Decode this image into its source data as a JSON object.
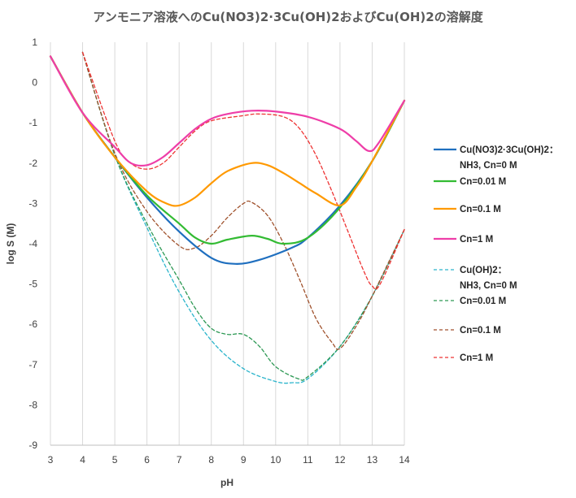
{
  "chart_data": {
    "type": "line",
    "title": "アンモニア溶液へのCu(NO3)2·3Cu(OH)2およびCu(OH)2の溶解度",
    "xlabel": "pH",
    "ylabel": "log S (M)",
    "xlim": [
      3,
      14
    ],
    "ylim": [
      -9,
      1
    ],
    "xticks": [
      3,
      4,
      5,
      6,
      7,
      8,
      9,
      10,
      11,
      12,
      13,
      14
    ],
    "yticks": [
      1,
      0,
      -1,
      -2,
      -3,
      -4,
      -5,
      -6,
      -7,
      -8,
      -9
    ],
    "grid": "vertical",
    "legend_position": "right",
    "series": [
      {
        "name": "Cu(NO3)2·3Cu(OH)2：",
        "name2": "NH3, Cn=0 M",
        "color": "#1f6fbf",
        "dash": false,
        "points": [
          [
            3,
            0.65
          ],
          [
            4,
            -0.75
          ],
          [
            5,
            -1.85
          ],
          [
            6,
            -2.85
          ],
          [
            7,
            -3.7
          ],
          [
            8,
            -4.35
          ],
          [
            8.75,
            -4.5
          ],
          [
            9.5,
            -4.4
          ],
          [
            10.5,
            -4.1
          ],
          [
            11,
            -3.85
          ],
          [
            12,
            -3.05
          ],
          [
            13,
            -1.95
          ],
          [
            14,
            -0.45
          ]
        ]
      },
      {
        "name": "Cn=0.01 M",
        "color": "#33bb33",
        "dash": false,
        "points": [
          [
            3,
            0.65
          ],
          [
            4,
            -0.75
          ],
          [
            5,
            -1.85
          ],
          [
            6,
            -2.8
          ],
          [
            7,
            -3.5
          ],
          [
            7.5,
            -3.85
          ],
          [
            8,
            -4
          ],
          [
            8.5,
            -3.9
          ],
          [
            9.25,
            -3.8
          ],
          [
            9.75,
            -3.88
          ],
          [
            10.25,
            -4
          ],
          [
            11,
            -3.85
          ],
          [
            12,
            -3.1
          ],
          [
            13,
            -1.95
          ],
          [
            14,
            -0.45
          ]
        ]
      },
      {
        "name": "Cn=0.1 M",
        "color": "#ff9900",
        "dash": false,
        "points": [
          [
            3,
            0.65
          ],
          [
            4,
            -0.75
          ],
          [
            5,
            -1.85
          ],
          [
            6,
            -2.7
          ],
          [
            6.6,
            -3
          ],
          [
            7,
            -3.05
          ],
          [
            7.5,
            -2.85
          ],
          [
            8,
            -2.5
          ],
          [
            8.5,
            -2.2
          ],
          [
            9.25,
            -2
          ],
          [
            9.75,
            -2.05
          ],
          [
            10.25,
            -2.25
          ],
          [
            10.75,
            -2.5
          ],
          [
            11.25,
            -2.75
          ],
          [
            12,
            -3.05
          ],
          [
            12.5,
            -2.6
          ],
          [
            13,
            -1.95
          ],
          [
            14,
            -0.45
          ]
        ]
      },
      {
        "name": "Cn=1 M",
        "color": "#ee3ea8",
        "dash": false,
        "points": [
          [
            3,
            0.65
          ],
          [
            4,
            -0.75
          ],
          [
            5,
            -1.6
          ],
          [
            5.5,
            -2
          ],
          [
            6,
            -2.05
          ],
          [
            6.5,
            -1.85
          ],
          [
            7,
            -1.5
          ],
          [
            7.5,
            -1.15
          ],
          [
            8,
            -0.9
          ],
          [
            8.5,
            -0.78
          ],
          [
            9.25,
            -0.7
          ],
          [
            10,
            -0.72
          ],
          [
            11,
            -0.85
          ],
          [
            12,
            -1.15
          ],
          [
            12.5,
            -1.45
          ],
          [
            12.9,
            -1.7
          ],
          [
            13.2,
            -1.5
          ],
          [
            14,
            -0.45
          ]
        ]
      },
      {
        "name": "Cu(OH)2：",
        "name2": "NH3, Cn=0 M",
        "color": "#2cb5cc",
        "dash": true,
        "points": [
          [
            4,
            0.75
          ],
          [
            5,
            -1.8
          ],
          [
            6,
            -3.6
          ],
          [
            7,
            -5.2
          ],
          [
            8,
            -6.4
          ],
          [
            9,
            -7.1
          ],
          [
            10,
            -7.42
          ],
          [
            10.5,
            -7.45
          ],
          [
            11,
            -7.35
          ],
          [
            12,
            -6.55
          ],
          [
            13,
            -5.3
          ],
          [
            14,
            -3.65
          ]
        ]
      },
      {
        "name": "Cn=0.01 M",
        "color": "#2e9955",
        "dash": true,
        "points": [
          [
            4,
            0.75
          ],
          [
            5,
            -1.8
          ],
          [
            6,
            -3.5
          ],
          [
            7,
            -4.9
          ],
          [
            7.5,
            -5.6
          ],
          [
            8,
            -6.1
          ],
          [
            8.5,
            -6.25
          ],
          [
            9,
            -6.25
          ],
          [
            9.5,
            -6.55
          ],
          [
            10,
            -7.05
          ],
          [
            10.7,
            -7.35
          ],
          [
            11,
            -7.3
          ],
          [
            12,
            -6.55
          ],
          [
            13,
            -5.3
          ],
          [
            14,
            -3.65
          ]
        ]
      },
      {
        "name": "Cn=0.1 M",
        "color": "#a0522d",
        "dash": true,
        "points": [
          [
            4,
            0.75
          ],
          [
            5,
            -1.75
          ],
          [
            6,
            -3.2
          ],
          [
            7,
            -4.05
          ],
          [
            7.5,
            -4.1
          ],
          [
            8,
            -3.8
          ],
          [
            8.5,
            -3.35
          ],
          [
            9,
            -3
          ],
          [
            9.25,
            -2.97
          ],
          [
            9.75,
            -3.3
          ],
          [
            10.25,
            -4
          ],
          [
            10.75,
            -4.9
          ],
          [
            11.25,
            -5.85
          ],
          [
            11.75,
            -6.45
          ],
          [
            12,
            -6.6
          ],
          [
            12.5,
            -6.05
          ],
          [
            13,
            -5.3
          ],
          [
            14,
            -3.65
          ]
        ]
      },
      {
        "name": "Cn=1 M",
        "color": "#ee3333",
        "dash": true,
        "points": [
          [
            4,
            0.75
          ],
          [
            5,
            -1.45
          ],
          [
            5.5,
            -2
          ],
          [
            6,
            -2.15
          ],
          [
            6.5,
            -2
          ],
          [
            7,
            -1.6
          ],
          [
            7.5,
            -1.2
          ],
          [
            8,
            -0.95
          ],
          [
            9,
            -0.82
          ],
          [
            9.5,
            -0.78
          ],
          [
            10.25,
            -0.85
          ],
          [
            10.75,
            -1.15
          ],
          [
            11.25,
            -1.8
          ],
          [
            11.75,
            -2.7
          ],
          [
            12.25,
            -3.7
          ],
          [
            12.75,
            -4.7
          ],
          [
            13,
            -5.05
          ],
          [
            13.25,
            -5.0
          ],
          [
            14,
            -3.65
          ]
        ]
      }
    ]
  }
}
